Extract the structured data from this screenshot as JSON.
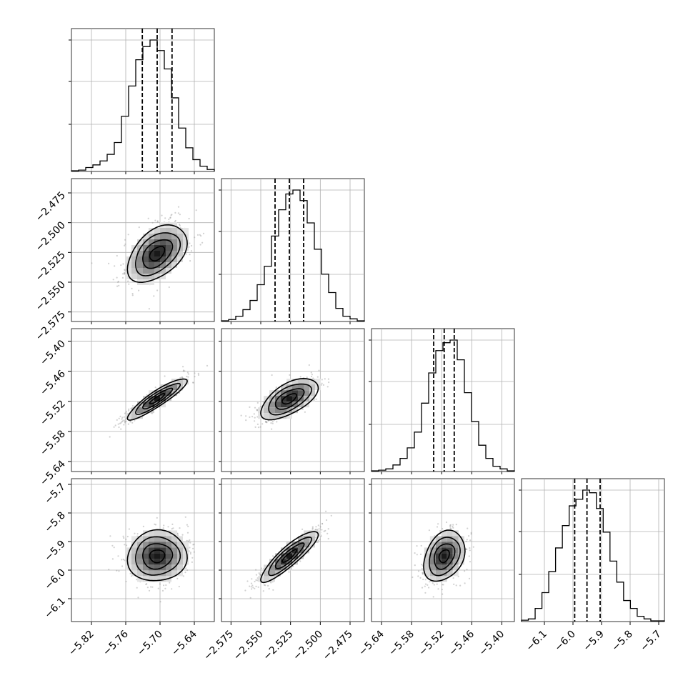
{
  "chart_data": {
    "type": "corner",
    "grid": true,
    "params": [
      {
        "ticks": [
          -5.82,
          -5.76,
          -5.7,
          -5.64
        ],
        "tick_labels": [
          "−5.82",
          "−5.76",
          "−5.70",
          "−5.64"
        ],
        "range": [
          -5.855,
          -5.605
        ],
        "median": -5.705,
        "q16": -5.731,
        "q84": -5.679
      },
      {
        "ticks": [
          -2.575,
          -2.55,
          -2.525,
          -2.5,
          -2.475
        ],
        "tick_labels": [
          "−2.575",
          "−2.550",
          "−2.525",
          "−2.500",
          "−2.475"
        ],
        "range": [
          -2.583,
          -2.463
        ],
        "median": -2.526,
        "q16": -2.538,
        "q84": -2.514
      },
      {
        "ticks": [
          -5.64,
          -5.58,
          -5.52,
          -5.46,
          -5.4
        ],
        "tick_labels": [
          "−5.64",
          "−5.58",
          "−5.52",
          "−5.46",
          "−5.40"
        ],
        "range": [
          -5.66,
          -5.375
        ],
        "median": -5.515,
        "q16": -5.536,
        "q84": -5.495
      },
      {
        "ticks": [
          -6.1,
          -6.0,
          -5.9,
          -5.8,
          -5.7
        ],
        "tick_labels": [
          "−6.1",
          "−6.0",
          "−5.9",
          "−5.8",
          "−5.7"
        ],
        "range": [
          -6.18,
          -5.68
        ],
        "median": -5.951,
        "q16": -5.994,
        "q84": -5.905
      }
    ],
    "histograms": [
      {
        "param": 0,
        "counts": [
          0.005,
          0.01,
          0.03,
          0.05,
          0.08,
          0.13,
          0.22,
          0.42,
          0.65,
          0.85,
          0.95,
          1.0,
          0.92,
          0.78,
          0.56,
          0.33,
          0.18,
          0.09,
          0.04,
          0.015
        ]
      },
      {
        "param": 1,
        "counts": [
          0.005,
          0.015,
          0.04,
          0.09,
          0.16,
          0.28,
          0.42,
          0.65,
          0.85,
          0.97,
          1.0,
          0.92,
          0.75,
          0.55,
          0.36,
          0.22,
          0.1,
          0.04,
          0.02,
          0.005
        ]
      },
      {
        "param": 2,
        "counts": [
          0.005,
          0.01,
          0.02,
          0.05,
          0.1,
          0.18,
          0.3,
          0.52,
          0.75,
          0.92,
          0.98,
          1.0,
          0.85,
          0.6,
          0.38,
          0.2,
          0.1,
          0.04,
          0.02,
          0.005
        ]
      },
      {
        "param": 3,
        "counts": [
          0.01,
          0.02,
          0.1,
          0.22,
          0.38,
          0.56,
          0.73,
          0.88,
          0.93,
          1.0,
          0.98,
          0.86,
          0.68,
          0.46,
          0.3,
          0.16,
          0.1,
          0.04,
          0.02,
          0.005,
          0.005
        ]
      }
    ],
    "pairs": [
      {
        "x": 0,
        "y": 1,
        "correlation": 0.45
      },
      {
        "x": 0,
        "y": 2,
        "correlation": 0.9
      },
      {
        "x": 1,
        "y": 2,
        "correlation": 0.6
      },
      {
        "x": 0,
        "y": 3,
        "correlation": 0.05
      },
      {
        "x": 1,
        "y": 3,
        "correlation": 0.88
      },
      {
        "x": 2,
        "y": 3,
        "correlation": 0.3
      }
    ]
  }
}
